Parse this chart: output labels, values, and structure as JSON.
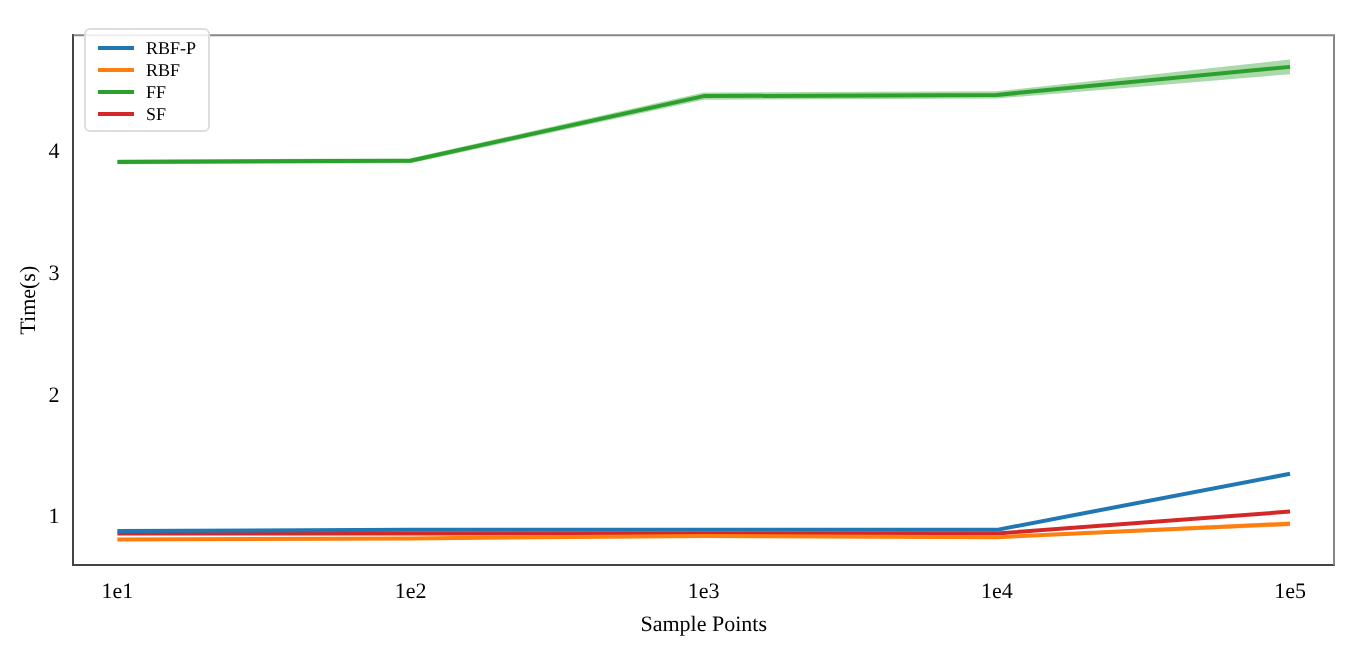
{
  "chart_data": {
    "type": "line",
    "xlabel": "Sample Points",
    "ylabel": "Time(s)",
    "categories": [
      "1e1",
      "1e2",
      "1e3",
      "1e4",
      "1e5"
    ],
    "series": [
      {
        "name": "RBF-P",
        "color": "#1f77b4",
        "values": [
          0.89,
          0.9,
          0.9,
          0.9,
          1.36
        ]
      },
      {
        "name": "RBF",
        "color": "#ff7f0e",
        "values": [
          0.82,
          0.83,
          0.85,
          0.84,
          0.95
        ],
        "lower": [
          0.81,
          0.82,
          0.84,
          0.83,
          0.93
        ],
        "upper": [
          0.83,
          0.84,
          0.86,
          0.85,
          0.97
        ]
      },
      {
        "name": "FF",
        "color": "#2ca02c",
        "values": [
          3.92,
          3.93,
          4.46,
          4.47,
          4.7
        ],
        "lower": [
          3.9,
          3.91,
          4.43,
          4.44,
          4.64
        ],
        "upper": [
          3.94,
          3.95,
          4.49,
          4.5,
          4.76
        ]
      },
      {
        "name": "SF",
        "color": "#d62728",
        "values": [
          0.87,
          0.87,
          0.87,
          0.87,
          1.05
        ]
      }
    ],
    "ylim": [
      0.61,
      4.96
    ],
    "yticks": [
      1,
      2,
      3,
      4
    ],
    "grid": false,
    "legend": "top left",
    "marker": "none",
    "line_style": "solid"
  }
}
